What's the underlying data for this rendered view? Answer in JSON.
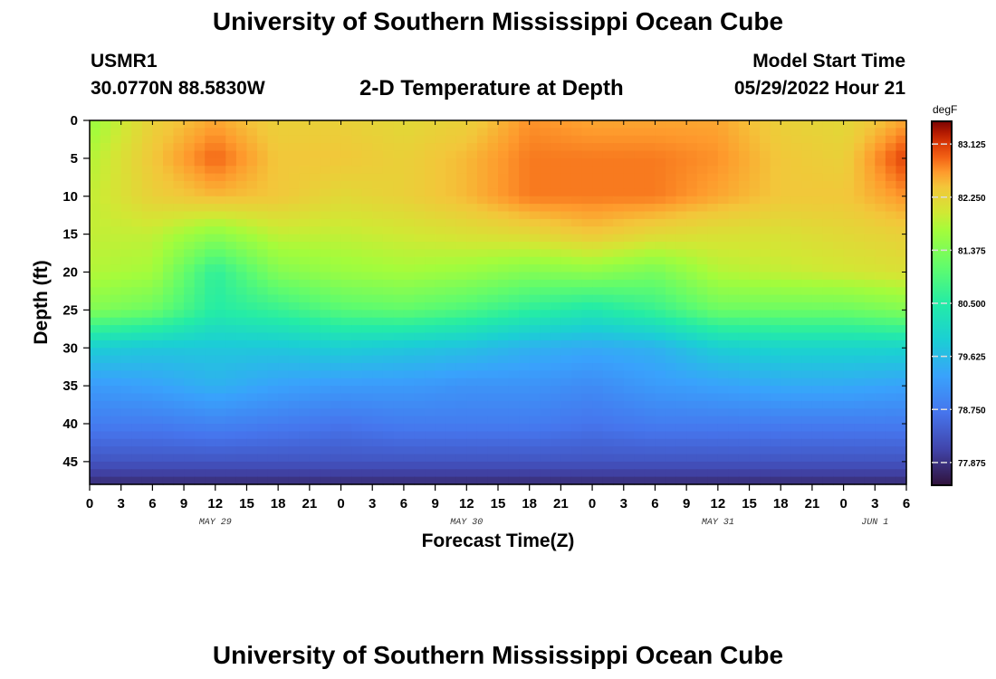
{
  "header": {
    "title": "University of Southern Mississippi Ocean Cube",
    "station": "USMR1",
    "coords": "30.0770N  88.5830W",
    "plot_title": "2-D Temperature at Depth",
    "start_label": "Model Start Time",
    "start_value": "05/29/2022 Hour 21"
  },
  "footer": {
    "title": "University of Southern Mississippi Ocean Cube"
  },
  "chart_data": {
    "type": "heatmap",
    "title": "2-D Temperature at Depth",
    "xlabel": "Forecast Time(Z)",
    "ylabel": "Depth (ft)",
    "xlim": [
      0,
      78
    ],
    "ylim": [
      0,
      48
    ],
    "x_unit": "hours from 05/29/2022 00Z",
    "x_ticks": [
      0,
      3,
      6,
      9,
      12,
      15,
      18,
      21,
      24,
      27,
      30,
      33,
      36,
      39,
      42,
      45,
      48,
      51,
      54,
      57,
      60,
      63,
      66,
      69,
      72,
      75,
      78
    ],
    "x_tick_labels": [
      "0",
      "3",
      "6",
      "9",
      "12",
      "15",
      "18",
      "21",
      "0",
      "3",
      "6",
      "9",
      "12",
      "15",
      "18",
      "21",
      "0",
      "3",
      "6",
      "9",
      "12",
      "15",
      "18",
      "21",
      "0",
      "3",
      "6"
    ],
    "y_ticks": [
      0,
      5,
      10,
      15,
      20,
      25,
      30,
      35,
      40,
      45
    ],
    "y_tick_labels": [
      "0",
      "5",
      "10",
      "15",
      "20",
      "25",
      "30",
      "35",
      "40",
      "45"
    ],
    "date_labels": [
      {
        "x": 12,
        "text": "MAY 29"
      },
      {
        "x": 36,
        "text": "MAY 30"
      },
      {
        "x": 60,
        "text": "MAY 31"
      },
      {
        "x": 75,
        "text": "JUN 1"
      }
    ],
    "colorbar": {
      "unit": "degF",
      "range": [
        77.5,
        83.5
      ],
      "ticks": [
        83.125,
        82.25,
        81.375,
        80.5,
        79.625,
        78.75,
        77.875
      ],
      "tick_labels": [
        "83.125",
        "82.250",
        "81.375",
        "80.500",
        "79.625",
        "78.750",
        "77.875"
      ]
    },
    "x_grid": [
      0,
      6,
      12,
      18,
      24,
      30,
      36,
      42,
      48,
      54,
      60,
      66,
      72,
      78
    ],
    "depth_grid": [
      0,
      5,
      10,
      15,
      20,
      25,
      30,
      35,
      40,
      45,
      48
    ],
    "values": [
      [
        81.6,
        82.3,
        82.6,
        82.3,
        82.3,
        82.2,
        82.3,
        82.7,
        82.6,
        82.6,
        82.6,
        82.3,
        82.2,
        82.6
      ],
      [
        81.8,
        82.4,
        82.9,
        82.4,
        82.4,
        82.3,
        82.5,
        82.8,
        82.8,
        82.8,
        82.7,
        82.4,
        82.3,
        83.1
      ],
      [
        81.9,
        82.3,
        82.5,
        82.4,
        82.2,
        82.3,
        82.5,
        82.8,
        82.8,
        82.8,
        82.6,
        82.4,
        82.4,
        82.7
      ],
      [
        81.9,
        81.9,
        81.5,
        81.9,
        81.9,
        82.0,
        82.1,
        82.2,
        82.4,
        82.2,
        82.1,
        82.1,
        82.2,
        82.3
      ],
      [
        81.8,
        81.7,
        80.6,
        81.4,
        81.6,
        81.7,
        81.6,
        81.4,
        81.5,
        81.3,
        81.8,
        81.9,
        82.0,
        82.1
      ],
      [
        81.4,
        81.2,
        80.5,
        80.7,
        81.0,
        81.1,
        80.9,
        80.6,
        80.4,
        80.7,
        81.2,
        81.2,
        81.2,
        81.4
      ],
      [
        79.9,
        79.8,
        79.8,
        79.8,
        79.9,
        79.8,
        79.7,
        79.5,
        79.4,
        79.5,
        79.9,
        80.0,
        80.0,
        80.0
      ],
      [
        79.2,
        79.3,
        79.5,
        79.3,
        79.2,
        79.2,
        79.1,
        79.1,
        79.0,
        79.2,
        79.3,
        79.4,
        79.4,
        79.3
      ],
      [
        78.8,
        78.8,
        78.9,
        78.8,
        78.7,
        78.8,
        78.8,
        78.8,
        78.7,
        78.8,
        78.8,
        78.8,
        78.8,
        78.8
      ],
      [
        78.3,
        78.3,
        78.3,
        78.3,
        78.3,
        78.3,
        78.3,
        78.3,
        78.3,
        78.3,
        78.3,
        78.3,
        78.3,
        78.3
      ],
      [
        77.8,
        77.8,
        77.8,
        77.8,
        77.8,
        77.8,
        77.8,
        77.8,
        77.8,
        77.8,
        77.8,
        77.8,
        77.8,
        77.8
      ]
    ]
  }
}
